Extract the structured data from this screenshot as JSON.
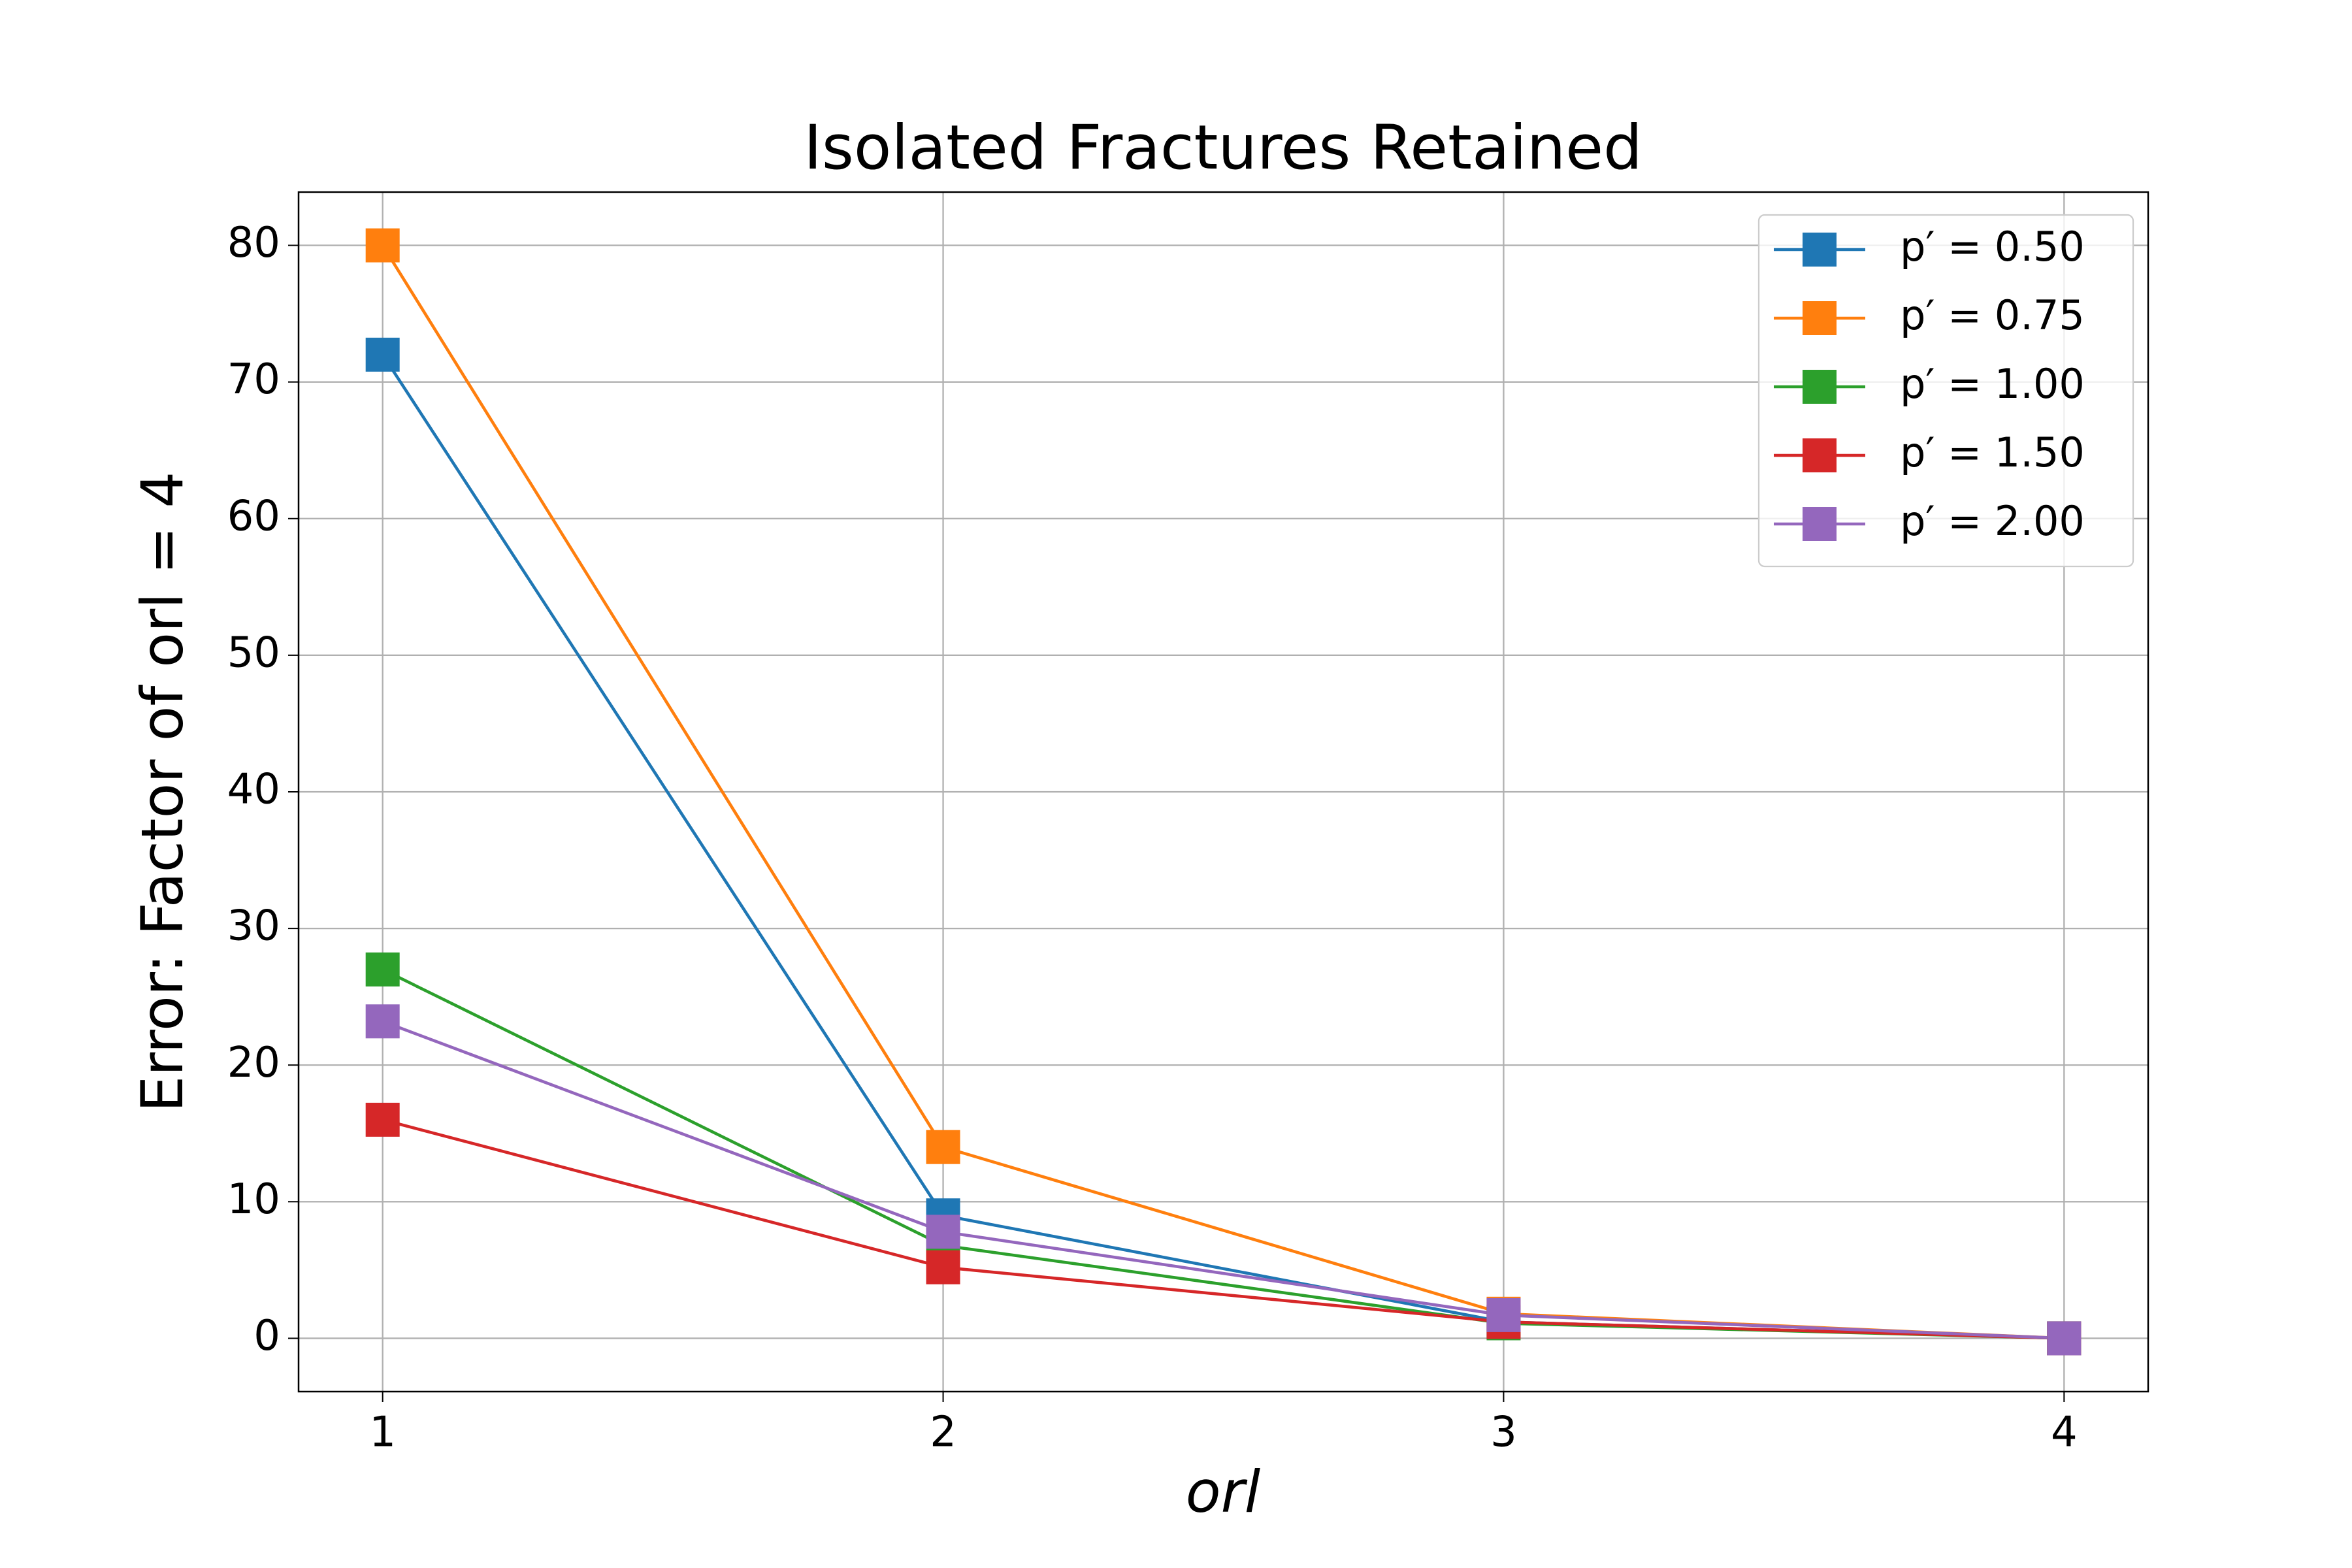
{
  "chart_data": {
    "type": "line",
    "title": "Isolated Fractures Retained",
    "xlabel": "orl",
    "ylabel": "Error: Factor of orl = 4",
    "x": [
      1,
      2,
      3,
      4
    ],
    "series": [
      {
        "name": "p′ =  0.50",
        "color": "#1f77b4",
        "values": [
          72,
          9,
          1.2,
          0
        ]
      },
      {
        "name": "p′ =  0.75",
        "color": "#ff7f0e",
        "values": [
          80,
          14,
          1.8,
          0
        ]
      },
      {
        "name": "p′ =  1.00",
        "color": "#2ca02c",
        "values": [
          27,
          6.8,
          1.1,
          0
        ]
      },
      {
        "name": "p′ =  1.50",
        "color": "#d62728",
        "values": [
          16,
          5.2,
          1.2,
          0
        ]
      },
      {
        "name": "p′ =  2.00",
        "color": "#9467bd",
        "values": [
          23.2,
          7.8,
          1.7,
          0
        ]
      }
    ],
    "xlim": [
      0.85,
      4.15
    ],
    "xticks": [
      1,
      2,
      3,
      4
    ],
    "ylim": [
      -3.9,
      83.9
    ],
    "yticks": [
      0,
      10,
      20,
      30,
      40,
      50,
      60,
      70,
      80
    ],
    "grid": true,
    "legend": "upper right"
  }
}
